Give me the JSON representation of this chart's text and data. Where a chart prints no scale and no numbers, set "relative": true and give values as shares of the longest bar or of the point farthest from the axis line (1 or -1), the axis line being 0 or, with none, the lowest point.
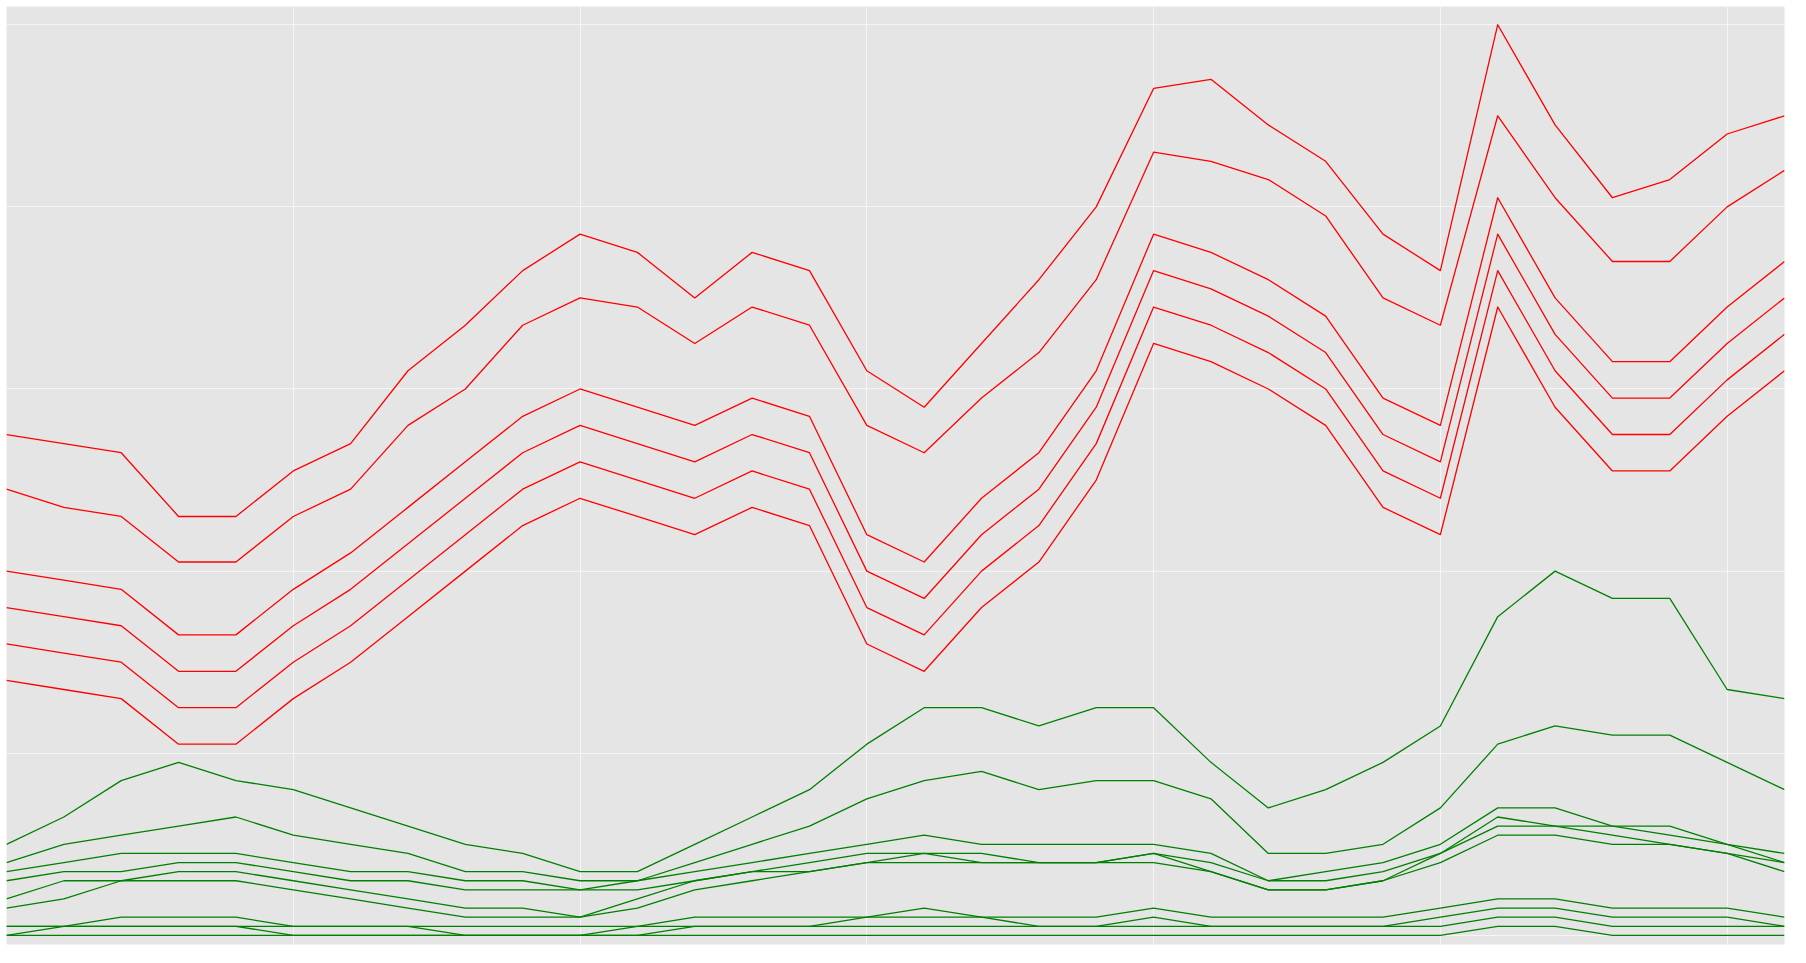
{
  "chart_data": {
    "type": "line",
    "relative": true,
    "grid": true,
    "marker": "none",
    "line_style": "solid",
    "categories": [
      null,
      null,
      null,
      null,
      null,
      null,
      null,
      null,
      null,
      null,
      null,
      null,
      null,
      null,
      null,
      null,
      null,
      null,
      null,
      null,
      null,
      null,
      null,
      null,
      null,
      null,
      null,
      null,
      null,
      null,
      null,
      null
    ],
    "series": [
      {
        "color": "#ff0000",
        "values": [
          0.55,
          0.54,
          0.53,
          0.46,
          0.46,
          0.51,
          0.54,
          0.62,
          0.67,
          0.73,
          0.77,
          0.75,
          0.7,
          0.75,
          0.73,
          0.62,
          0.58,
          0.65,
          0.72,
          0.8,
          0.93,
          0.94,
          0.89,
          0.85,
          0.77,
          0.73,
          1.0,
          0.89,
          0.81,
          0.83,
          0.88,
          0.9
        ]
      },
      {
        "color": "#ff0000",
        "values": [
          0.49,
          0.47,
          0.46,
          0.41,
          0.41,
          0.46,
          0.49,
          0.56,
          0.6,
          0.67,
          0.7,
          0.69,
          0.65,
          0.69,
          0.67,
          0.56,
          0.53,
          0.59,
          0.64,
          0.72,
          0.86,
          0.85,
          0.83,
          0.79,
          0.7,
          0.67,
          0.9,
          0.81,
          0.74,
          0.74,
          0.8,
          0.84
        ]
      },
      {
        "color": "#ff0000",
        "values": [
          0.4,
          0.39,
          0.38,
          0.33,
          0.33,
          0.38,
          0.42,
          0.47,
          0.52,
          0.57,
          0.6,
          0.58,
          0.56,
          0.59,
          0.57,
          0.44,
          0.41,
          0.48,
          0.53,
          0.62,
          0.77,
          0.75,
          0.72,
          0.68,
          0.59,
          0.56,
          0.81,
          0.7,
          0.63,
          0.63,
          0.69,
          0.74
        ]
      },
      {
        "color": "#ff0000",
        "values": [
          0.36,
          0.35,
          0.34,
          0.29,
          0.29,
          0.34,
          0.38,
          0.43,
          0.48,
          0.53,
          0.56,
          0.54,
          0.52,
          0.55,
          0.53,
          0.4,
          0.37,
          0.44,
          0.49,
          0.58,
          0.73,
          0.71,
          0.68,
          0.64,
          0.55,
          0.52,
          0.77,
          0.66,
          0.59,
          0.59,
          0.65,
          0.7
        ]
      },
      {
        "color": "#ff0000",
        "values": [
          0.32,
          0.31,
          0.3,
          0.25,
          0.25,
          0.3,
          0.34,
          0.39,
          0.44,
          0.49,
          0.52,
          0.5,
          0.48,
          0.51,
          0.49,
          0.36,
          0.33,
          0.4,
          0.45,
          0.54,
          0.69,
          0.67,
          0.64,
          0.6,
          0.51,
          0.48,
          0.73,
          0.62,
          0.55,
          0.55,
          0.61,
          0.66
        ]
      },
      {
        "color": "#ff0000",
        "values": [
          0.28,
          0.27,
          0.26,
          0.21,
          0.21,
          0.26,
          0.3,
          0.35,
          0.4,
          0.45,
          0.48,
          0.46,
          0.44,
          0.47,
          0.45,
          0.32,
          0.29,
          0.36,
          0.41,
          0.5,
          0.65,
          0.63,
          0.6,
          0.56,
          0.47,
          0.44,
          0.69,
          0.58,
          0.51,
          0.51,
          0.57,
          0.62
        ]
      },
      {
        "color": "#008000",
        "values": [
          0.1,
          0.13,
          0.17,
          0.19,
          0.17,
          0.16,
          0.14,
          0.12,
          0.1,
          0.09,
          0.07,
          0.07,
          0.1,
          0.13,
          0.16,
          0.21,
          0.25,
          0.25,
          0.23,
          0.25,
          0.25,
          0.19,
          0.14,
          0.16,
          0.19,
          0.23,
          0.35,
          0.4,
          0.37,
          0.37,
          0.27,
          0.26
        ]
      },
      {
        "color": "#008000",
        "values": [
          0.08,
          0.1,
          0.11,
          0.12,
          0.13,
          0.11,
          0.1,
          0.09,
          0.07,
          0.07,
          0.06,
          0.06,
          0.08,
          0.1,
          0.12,
          0.15,
          0.17,
          0.18,
          0.16,
          0.17,
          0.17,
          0.15,
          0.09,
          0.09,
          0.1,
          0.14,
          0.21,
          0.23,
          0.22,
          0.22,
          0.19,
          0.16
        ]
      },
      {
        "color": "#008000",
        "values": [
          0.07,
          0.08,
          0.09,
          0.09,
          0.09,
          0.08,
          0.07,
          0.07,
          0.06,
          0.06,
          0.05,
          0.06,
          0.07,
          0.08,
          0.09,
          0.1,
          0.11,
          0.1,
          0.1,
          0.1,
          0.1,
          0.09,
          0.06,
          0.07,
          0.08,
          0.1,
          0.14,
          0.14,
          0.12,
          0.12,
          0.1,
          0.09
        ]
      },
      {
        "color": "#008000",
        "values": [
          0.06,
          0.07,
          0.07,
          0.08,
          0.08,
          0.07,
          0.06,
          0.06,
          0.05,
          0.05,
          0.05,
          0.05,
          0.06,
          0.07,
          0.08,
          0.09,
          0.09,
          0.09,
          0.08,
          0.08,
          0.09,
          0.08,
          0.06,
          0.06,
          0.07,
          0.09,
          0.13,
          0.12,
          0.12,
          0.11,
          0.1,
          0.08
        ]
      },
      {
        "color": "#008000",
        "values": [
          0.04,
          0.06,
          0.06,
          0.07,
          0.07,
          0.06,
          0.05,
          0.04,
          0.03,
          0.03,
          0.02,
          0.04,
          0.06,
          0.07,
          0.07,
          0.08,
          0.09,
          0.08,
          0.08,
          0.08,
          0.09,
          0.07,
          0.05,
          0.05,
          0.06,
          0.09,
          0.12,
          0.12,
          0.11,
          0.1,
          0.09,
          0.08
        ]
      },
      {
        "color": "#008000",
        "values": [
          0.03,
          0.04,
          0.06,
          0.06,
          0.06,
          0.05,
          0.04,
          0.03,
          0.02,
          0.02,
          0.02,
          0.03,
          0.05,
          0.06,
          0.07,
          0.08,
          0.08,
          0.08,
          0.08,
          0.08,
          0.08,
          0.07,
          0.05,
          0.05,
          0.06,
          0.08,
          0.11,
          0.11,
          0.1,
          0.1,
          0.09,
          0.07
        ]
      },
      {
        "color": "#008000",
        "values": [
          0.01,
          0.01,
          0.02,
          0.02,
          0.02,
          0.01,
          0.01,
          0.01,
          0.01,
          0.01,
          0.01,
          0.01,
          0.02,
          0.02,
          0.02,
          0.02,
          0.03,
          0.02,
          0.02,
          0.02,
          0.03,
          0.02,
          0.02,
          0.02,
          0.02,
          0.03,
          0.04,
          0.04,
          0.03,
          0.03,
          0.03,
          0.02
        ]
      },
      {
        "color": "#008000",
        "values": [
          0.01,
          0.01,
          0.01,
          0.01,
          0.01,
          0.01,
          0.01,
          0.01,
          0.0,
          0.0,
          0.0,
          0.01,
          0.01,
          0.01,
          0.01,
          0.02,
          0.02,
          0.02,
          0.01,
          0.01,
          0.02,
          0.01,
          0.01,
          0.01,
          0.01,
          0.02,
          0.03,
          0.03,
          0.02,
          0.02,
          0.02,
          0.01
        ]
      },
      {
        "color": "#008000",
        "values": [
          0.0,
          0.01,
          0.01,
          0.01,
          0.01,
          0.0,
          0.0,
          0.0,
          0.0,
          0.0,
          0.0,
          0.0,
          0.01,
          0.01,
          0.01,
          0.01,
          0.01,
          0.01,
          0.01,
          0.01,
          0.01,
          0.01,
          0.01,
          0.01,
          0.01,
          0.01,
          0.02,
          0.02,
          0.01,
          0.01,
          0.01,
          0.01
        ]
      },
      {
        "color": "#008000",
        "values": [
          0.0,
          0.0,
          0.0,
          0.0,
          0.0,
          0.0,
          0.0,
          0.0,
          0.0,
          0.0,
          0.0,
          0.0,
          0.0,
          0.0,
          0.0,
          0.0,
          0.0,
          0.0,
          0.0,
          0.0,
          0.0,
          0.0,
          0.0,
          0.0,
          0.0,
          0.0,
          0.01,
          0.01,
          0.0,
          0.0,
          0.0,
          0.0
        ]
      }
    ]
  }
}
